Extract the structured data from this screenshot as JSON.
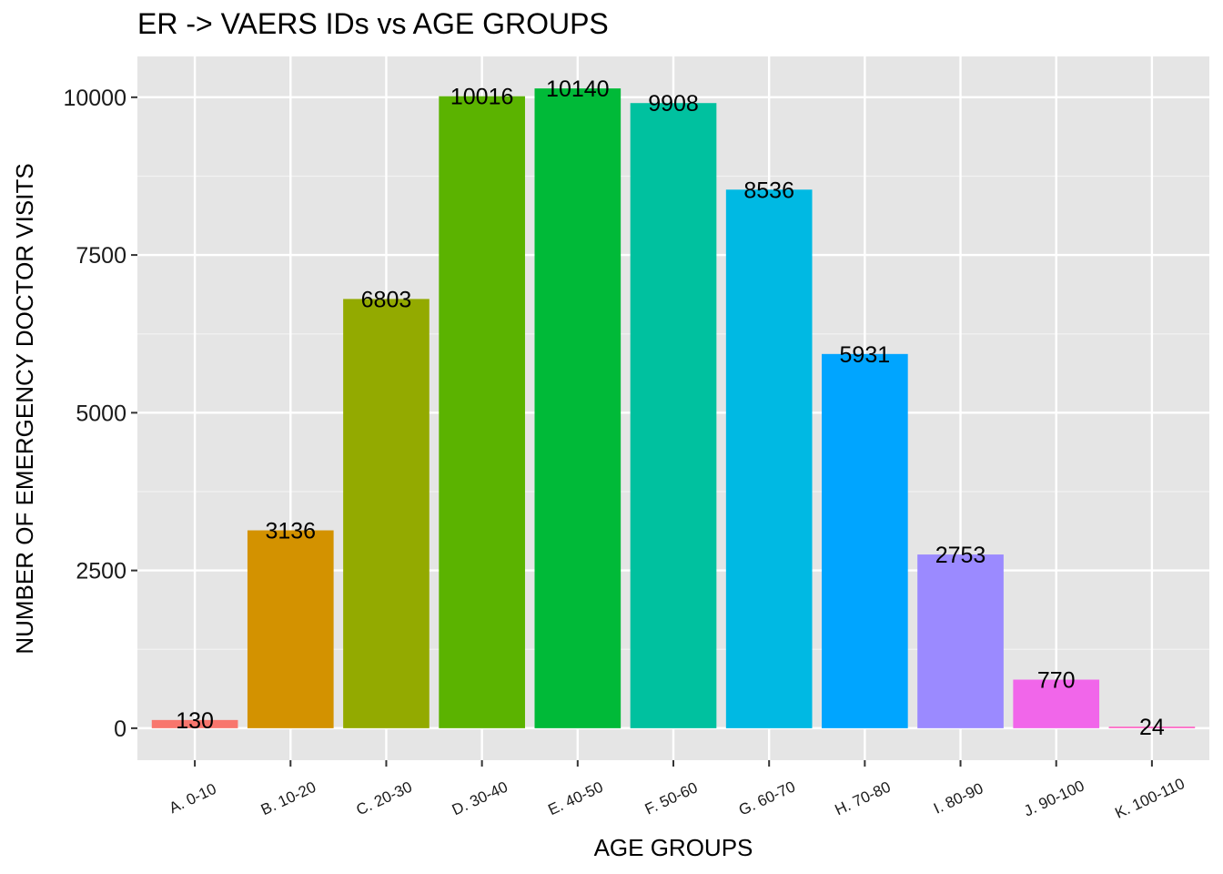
{
  "chart_data": {
    "type": "bar",
    "title": "ER -> VAERS IDs vs AGE GROUPS",
    "xlabel": "AGE GROUPS",
    "ylabel": "NUMBER OF EMERGENCY DOCTOR VISITS",
    "categories": [
      "A. 0-10",
      "B. 10-20",
      "C. 20-30",
      "D. 30-40",
      "E. 40-50",
      "F. 50-60",
      "G. 60-70",
      "H. 70-80",
      "I. 80-90",
      "J. 90-100",
      "K. 100-110"
    ],
    "values": [
      130,
      3136,
      6803,
      10016,
      10140,
      9908,
      8536,
      5931,
      2753,
      770,
      24
    ],
    "data_labels": [
      "130",
      "3136",
      "6803",
      "10016",
      "10140",
      "9908",
      "8536",
      "5931",
      "2753",
      "770",
      "24"
    ],
    "colors": [
      "#F8766D",
      "#D39200",
      "#93AA00",
      "#5BB300",
      "#00BA38",
      "#00C19F",
      "#00B9E3",
      "#00A5FF",
      "#9B8AFF",
      "#F166EA",
      "#FF61C3"
    ],
    "yticks": [
      0,
      2500,
      5000,
      7500,
      10000
    ],
    "ytick_labels": [
      "0",
      "2500",
      "5000",
      "7500",
      "10000"
    ],
    "ylim": [
      -507,
      10647
    ],
    "grid": true,
    "panel_background": "#E5E5E5",
    "legend": "none"
  }
}
